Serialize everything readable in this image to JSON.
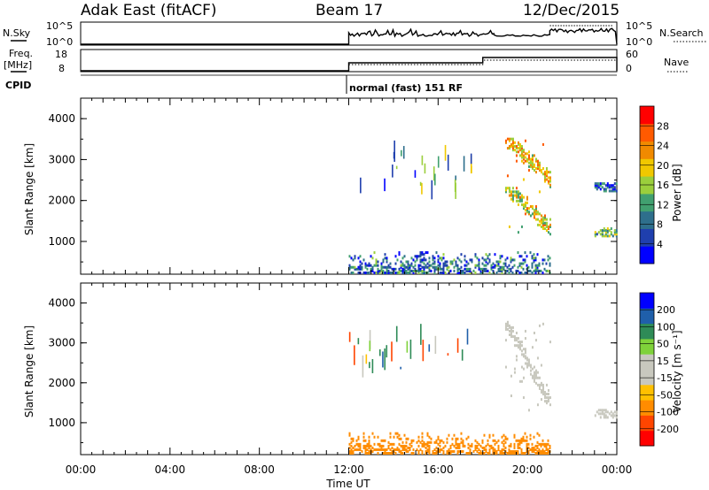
{
  "header": {
    "station": "Adak East (fitACF)",
    "beam": "Beam 17",
    "date": "12/Dec/2015"
  },
  "top_panels": {
    "nsky_label": "N.Sky",
    "nsky_ticks": [
      "10^5",
      "10^0"
    ],
    "nsearch_label": "N.Search",
    "nsearch_ticks": [
      "10^5",
      "10^0"
    ],
    "freq_label": "Freq.",
    "freq_unit": "[MHz]",
    "freq_ticks": [
      "18",
      "8"
    ],
    "nave_label": "Nave",
    "nave_ticks": [
      "60",
      "0"
    ],
    "cpid_label": "CPID",
    "cpid_text": "normal (fast) 151 RF"
  },
  "colors": {
    "power": [
      "#0000ff",
      "#1f3fae",
      "#2e6f8c",
      "#41a070",
      "#9bcf3c",
      "#f0c800",
      "#f08a00",
      "#ff5a00",
      "#ff0000"
    ],
    "velocity": [
      "#ff0000",
      "#ff4500",
      "#ff8c00",
      "#ffc000",
      "#c8c8be",
      "#c8c8be",
      "#7fd23a",
      "#2e8b57",
      "#1f5faa",
      "#0000ff"
    ]
  },
  "chart_data": [
    {
      "type": "heatmap",
      "title": "Power",
      "ylabel": "Slant Range [km]",
      "ylim": [
        200,
        4500
      ],
      "yticks": [
        "1000",
        "2000",
        "3000",
        "4000"
      ],
      "xlim": [
        "00:00",
        "24:00"
      ],
      "colorbar_label": "Power [dB]",
      "colorbar_ticks": [
        "4",
        "8",
        "12",
        "16",
        "20",
        "24",
        "28"
      ],
      "regions": [
        {
          "from": "12:00",
          "to": "21:00",
          "range_lo": 200,
          "range_hi": 700,
          "value": 10
        },
        {
          "from": "19:00",
          "to": "21:00",
          "range_lo": 1100,
          "range_hi": 2300,
          "value": 20
        },
        {
          "from": "19:00",
          "to": "21:00",
          "range_lo": 2300,
          "range_hi": 3500,
          "value": 22
        },
        {
          "from": "23:00",
          "to": "24:00",
          "range_lo": 1100,
          "range_hi": 1300,
          "value": 14
        },
        {
          "from": "23:00",
          "to": "24:00",
          "range_lo": 2200,
          "range_hi": 2400,
          "value": 8
        }
      ]
    },
    {
      "type": "heatmap",
      "title": "Velocity",
      "ylabel": "Slant Range [km]",
      "ylim": [
        200,
        4500
      ],
      "yticks": [
        "1000",
        "2000",
        "3000",
        "4000"
      ],
      "xlim": [
        "00:00",
        "24:00"
      ],
      "xticks": [
        "00:00",
        "04:00",
        "08:00",
        "12:00",
        "16:00",
        "20:00",
        "00:00"
      ],
      "xlabel": "Time UT",
      "colorbar_label": "Velocity [m s⁻¹]",
      "colorbar_ticks": [
        "-200",
        "-100",
        "-50",
        "-15",
        "15",
        "50",
        "100",
        "200"
      ],
      "regions": [
        {
          "from": "12:00",
          "to": "21:00",
          "range_lo": 200,
          "range_hi": 700,
          "value": -80
        },
        {
          "from": "19:00",
          "to": "21:00",
          "range_lo": 1100,
          "range_hi": 3500,
          "value": 0
        },
        {
          "from": "23:00",
          "to": "24:00",
          "range_lo": 1100,
          "range_hi": 1300,
          "value": 0
        }
      ]
    }
  ]
}
